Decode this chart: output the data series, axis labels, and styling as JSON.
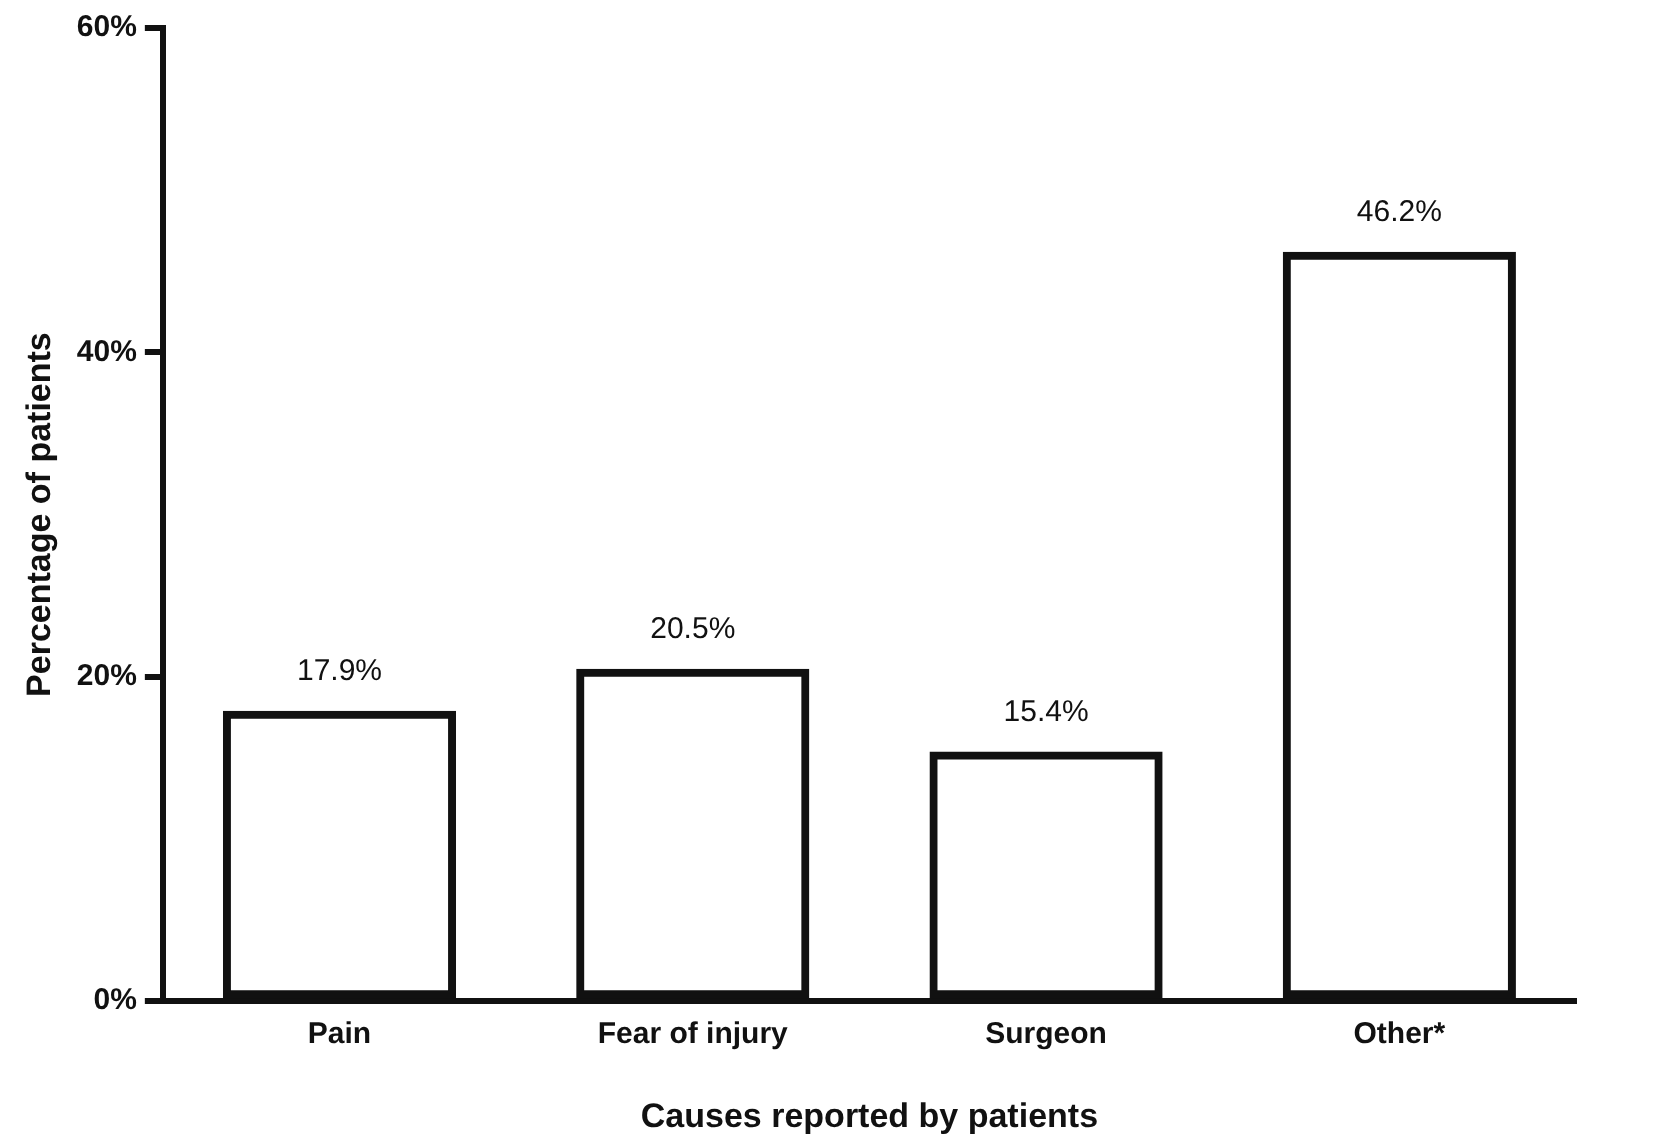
{
  "chart_data": {
    "type": "bar",
    "xlabel": "Causes reported by patients",
    "ylabel": "Percentage of patients",
    "categories": [
      "Pain",
      "Fear of injury",
      "Surgeon",
      "Other*"
    ],
    "values": [
      17.9,
      20.5,
      15.4,
      46.2
    ],
    "value_labels": [
      "17.9%",
      "20.5%",
      "15.4%",
      "46.2%"
    ],
    "color": "#111111",
    "ylim": [
      0,
      60
    ],
    "yticks": [
      {
        "value": 0,
        "label": "0%"
      },
      {
        "value": 20,
        "label": "20%"
      },
      {
        "value": 40,
        "label": "40%"
      },
      {
        "value": 60,
        "label": "60%"
      }
    ]
  }
}
